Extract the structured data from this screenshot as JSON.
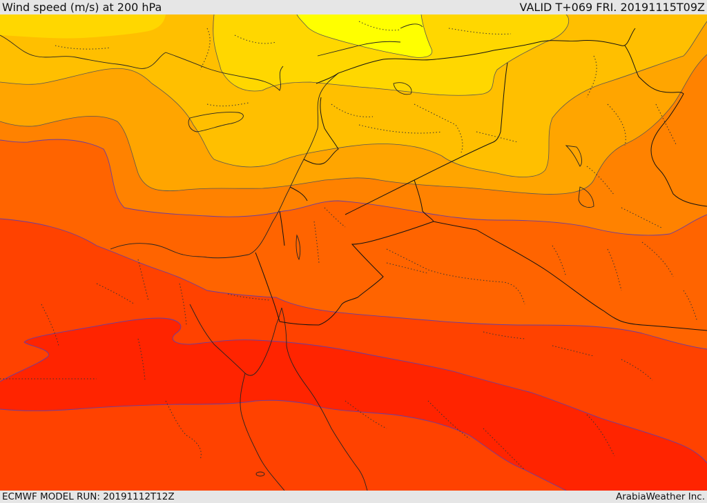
{
  "header": {
    "title": "Wind speed (m/s) at 200 hPa",
    "valid": "VALID T+069 FRI. 20191115T09Z"
  },
  "footer": {
    "model_run": "ECMWF MODEL RUN: 20191112T12Z",
    "credit": "ArabiaWeather Inc."
  },
  "colors": {
    "band_bright_yellow": "#ffff00",
    "band_yellow": "#ffd700",
    "band_amber": "#ffbf00",
    "band_orange_light": "#ffa500",
    "band_orange": "#ff8200",
    "band_orange_deep": "#ff6400",
    "band_red_orange": "#ff4200",
    "band_red": "#ff2400"
  }
}
